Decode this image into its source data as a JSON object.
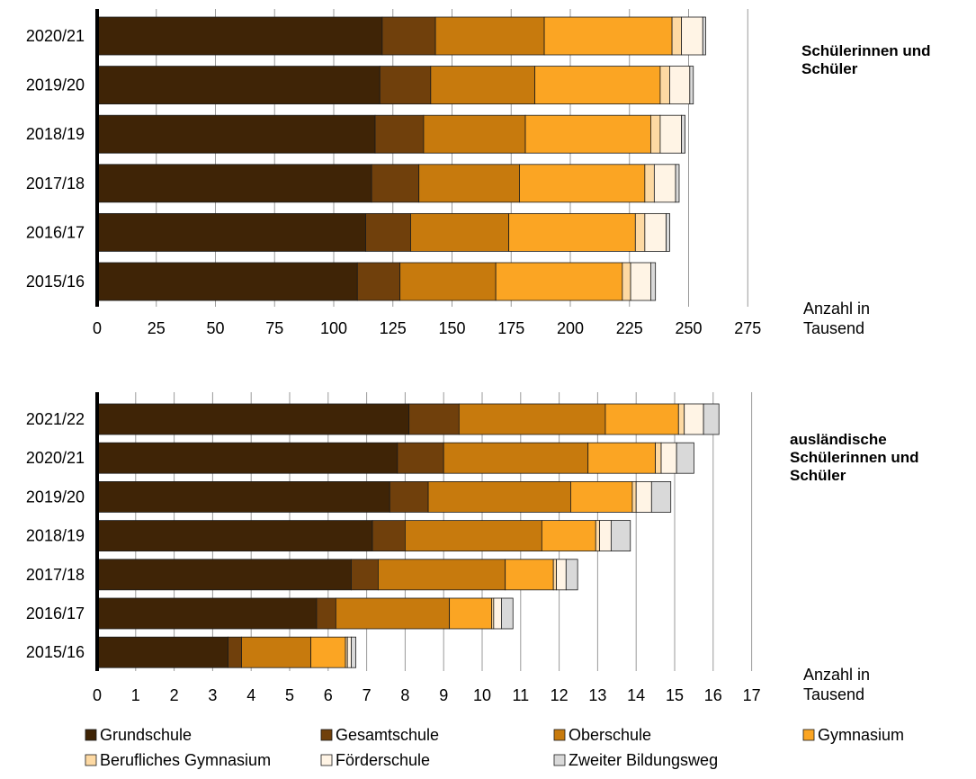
{
  "legend": [
    {
      "label": "Grundschule",
      "color": "#3f2406"
    },
    {
      "label": "Gesamtschule",
      "color": "#70400c"
    },
    {
      "label": "Oberschule",
      "color": "#c77a0d"
    },
    {
      "label": "Gymnasium",
      "color": "#fba523"
    },
    {
      "label": "Berufliches Gymnasium",
      "color": "#fdd9a3"
    },
    {
      "label": "Förderschule",
      "color": "#fff4e5"
    },
    {
      "label": "Zweiter Bildungsweg",
      "color": "#d9d9d9"
    }
  ],
  "chart_data": [
    {
      "type": "bar",
      "orientation": "horizontal",
      "stacked": true,
      "title": "Schülerinnen und Schüler",
      "xlabel": "Anzahl in Tausend",
      "xlim": [
        0,
        275
      ],
      "xticks": [
        "0",
        "25",
        "50",
        "75",
        "100",
        "125",
        "150",
        "175",
        "200",
        "225",
        "250",
        "275"
      ],
      "grid": true,
      "categories": [
        "2020/21",
        "2019/20",
        "2018/19",
        "2017/18",
        "2016/17",
        "2015/16"
      ],
      "series": [
        {
          "name": "Grundschule",
          "values": [
            120.5,
            119.5,
            117.5,
            116.0,
            113.5,
            110.0
          ]
        },
        {
          "name": "Gesamtschule",
          "values": [
            22.5,
            21.5,
            20.5,
            20.0,
            19.0,
            18.0
          ]
        },
        {
          "name": "Oberschule",
          "values": [
            46.0,
            44.0,
            43.0,
            42.5,
            41.5,
            40.5
          ]
        },
        {
          "name": "Gymnasium",
          "values": [
            54.0,
            53.0,
            53.0,
            53.0,
            53.5,
            53.5
          ]
        },
        {
          "name": "Berufliches Gymnasium",
          "values": [
            4.0,
            4.0,
            4.0,
            4.0,
            4.0,
            3.5
          ]
        },
        {
          "name": "Förderschule",
          "values": [
            9.0,
            8.5,
            9.0,
            9.0,
            9.0,
            8.5
          ]
        },
        {
          "name": "Zweiter Bildungsweg",
          "values": [
            1.2,
            1.5,
            1.5,
            1.5,
            1.5,
            2.0
          ]
        }
      ]
    },
    {
      "type": "bar",
      "orientation": "horizontal",
      "stacked": true,
      "title": "ausländische Schülerinnen und Schüler",
      "xlabel": "Anzahl in Tausend",
      "xlim": [
        0,
        17
      ],
      "xticks": [
        "0",
        "1",
        "2",
        "3",
        "4",
        "5",
        "6",
        "7",
        "8",
        "9",
        "10",
        "11",
        "12",
        "13",
        "14",
        "15",
        "16",
        "17"
      ],
      "grid": true,
      "categories": [
        "2021/22",
        "2020/21",
        "2019/20",
        "2018/19",
        "2017/18",
        "2016/17",
        "2015/16"
      ],
      "series": [
        {
          "name": "Grundschule",
          "values": [
            8.1,
            7.8,
            7.6,
            7.15,
            6.6,
            5.7,
            3.4
          ]
        },
        {
          "name": "Gesamtschule",
          "values": [
            1.3,
            1.2,
            1.0,
            0.85,
            0.7,
            0.5,
            0.35
          ]
        },
        {
          "name": "Oberschule",
          "values": [
            3.8,
            3.75,
            3.7,
            3.55,
            3.3,
            2.95,
            1.8
          ]
        },
        {
          "name": "Gymnasium",
          "values": [
            1.9,
            1.75,
            1.6,
            1.4,
            1.25,
            1.1,
            0.9
          ]
        },
        {
          "name": "Berufliches Gymnasium",
          "values": [
            0.15,
            0.15,
            0.1,
            0.1,
            0.08,
            0.05,
            0.05
          ]
        },
        {
          "name": "Förderschule",
          "values": [
            0.5,
            0.4,
            0.4,
            0.3,
            0.25,
            0.2,
            0.1
          ]
        },
        {
          "name": "Zweiter Bildungsweg",
          "values": [
            0.4,
            0.45,
            0.5,
            0.5,
            0.3,
            0.3,
            0.12
          ]
        }
      ]
    }
  ]
}
